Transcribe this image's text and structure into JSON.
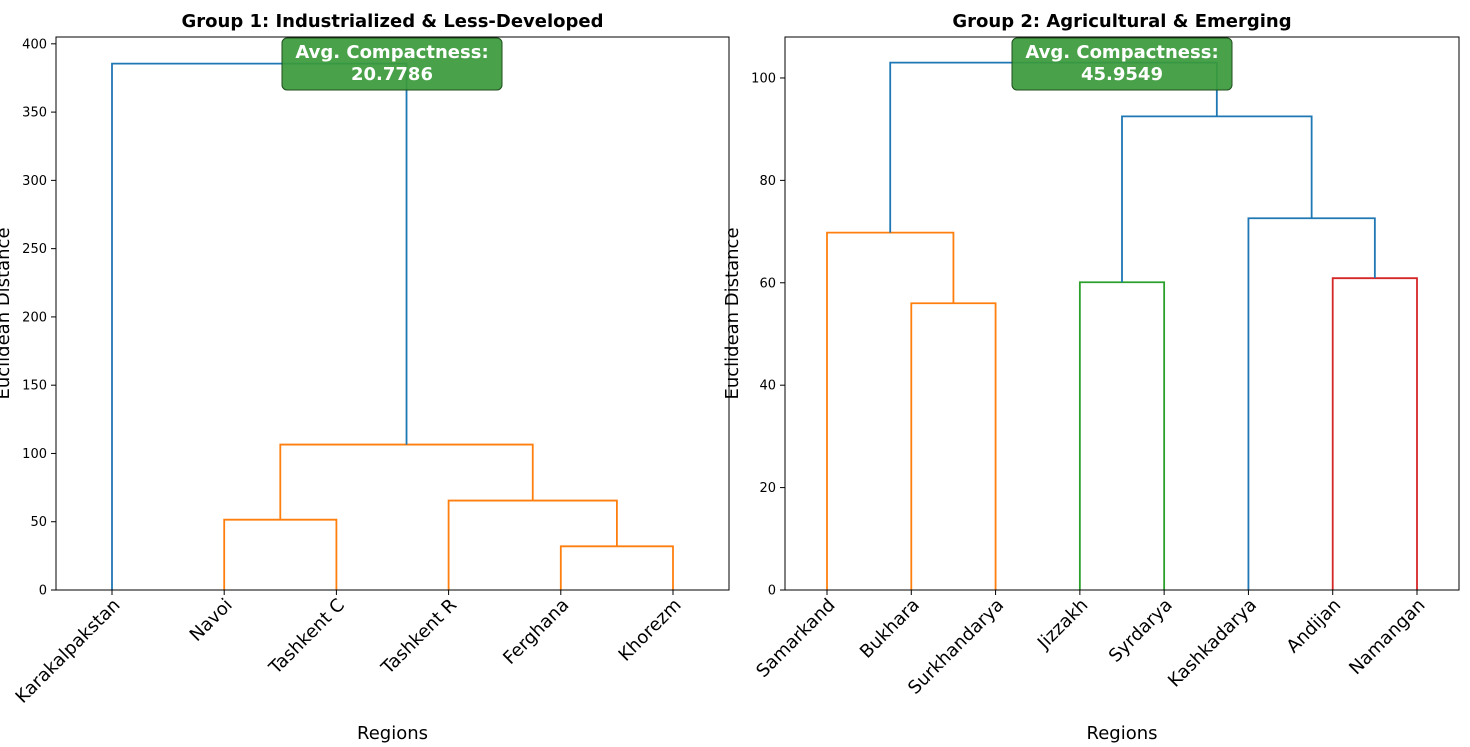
{
  "colors": {
    "above_threshold": "#1f77b4",
    "cluster_orange": "#ff7f0e",
    "cluster_green": "#2ca02c",
    "cluster_red": "#d62728",
    "annotation_box": "#3a9a3a"
  },
  "chart_data": [
    {
      "type": "dendrogram",
      "title": "Group 1: Industrialized & Less-Developed",
      "xlabel": "Regions",
      "ylabel": "Euclidean Distance",
      "ylim": [
        0,
        405
      ],
      "yticks": [
        0,
        50,
        100,
        150,
        200,
        250,
        300,
        350,
        400
      ],
      "ytick_labels": [
        "0",
        "50",
        "100",
        "150",
        "200",
        "250",
        "300",
        "350",
        "400"
      ],
      "leaves": [
        "Karakalpakstan",
        "Navoi",
        "Tashkent C",
        "Tashkent R",
        "Ferghana",
        "Khorezm"
      ],
      "annotation": {
        "label": "Avg. Compactness:",
        "value": "20.7786"
      },
      "merges": [
        {
          "left": 4,
          "right": 5,
          "height": 32,
          "color": "cluster_orange"
        },
        {
          "left": 3,
          "right": "m0",
          "height": 65.5,
          "color": "cluster_orange"
        },
        {
          "left": 1,
          "right": 2,
          "height": 51.5,
          "color": "cluster_orange"
        },
        {
          "left": "m2",
          "right": "m1",
          "height": 106.5,
          "color": "cluster_orange"
        },
        {
          "left": 0,
          "right": "m3",
          "height": 385.5,
          "color": "above_threshold"
        }
      ]
    },
    {
      "type": "dendrogram",
      "title": "Group 2: Agricultural & Emerging",
      "xlabel": "Regions",
      "ylabel": "Euclidean Distance",
      "ylim": [
        0,
        108
      ],
      "yticks": [
        0,
        20,
        40,
        60,
        80,
        100
      ],
      "ytick_labels": [
        "0",
        "20",
        "40",
        "60",
        "80",
        "100"
      ],
      "leaves": [
        "Samarkand",
        "Bukhara",
        "Surkhandarya",
        "Jizzakh",
        "Syrdarya",
        "Kashkadarya",
        "Andijan",
        "Namangan"
      ],
      "annotation": {
        "label": "Avg. Compactness:",
        "value": "45.9549"
      },
      "merges": [
        {
          "left": 1,
          "right": 2,
          "height": 56,
          "color": "cluster_orange"
        },
        {
          "left": 0,
          "right": "m0",
          "height": 69.8,
          "color": "cluster_orange"
        },
        {
          "left": 3,
          "right": 4,
          "height": 60.1,
          "color": "cluster_green"
        },
        {
          "left": 6,
          "right": 7,
          "height": 60.9,
          "color": "cluster_red"
        },
        {
          "left": 5,
          "right": "m3",
          "height": 72.6,
          "color": "above_threshold"
        },
        {
          "left": "m2",
          "right": "m4",
          "height": 92.5,
          "color": "above_threshold"
        },
        {
          "left": "m1",
          "right": "m5",
          "height": 103,
          "color": "above_threshold"
        }
      ]
    }
  ]
}
